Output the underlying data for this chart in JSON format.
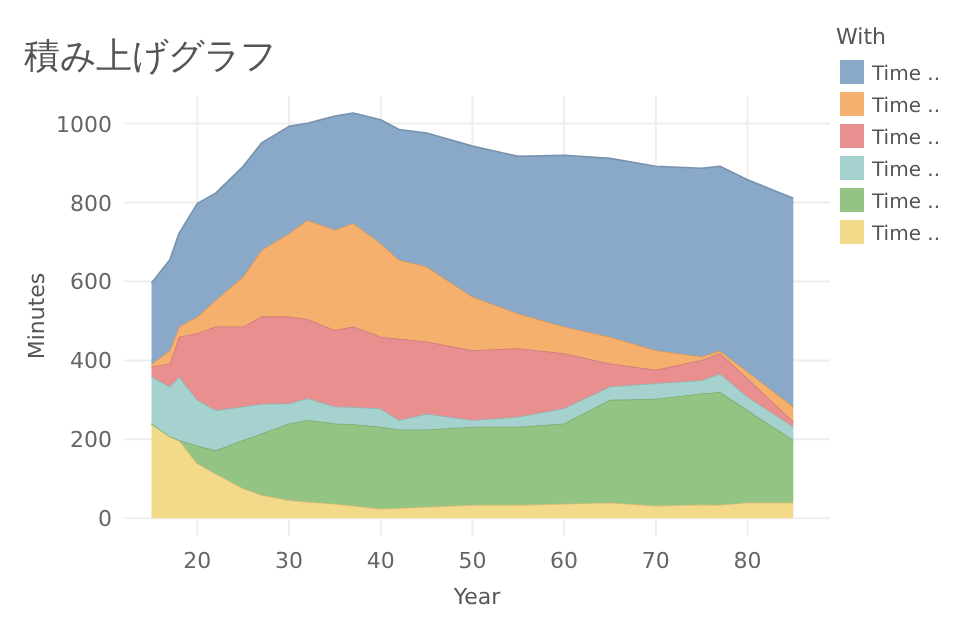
{
  "chart_data": {
    "type": "area",
    "stacked": true,
    "title": "積み上げグラフ",
    "xlabel": "Year",
    "ylabel": "Minutes",
    "legend_title": "With",
    "legend": "top right",
    "grid": true,
    "x": [
      15,
      17,
      18,
      20,
      22,
      25,
      27,
      30,
      32,
      35,
      37,
      40,
      42,
      45,
      50,
      55,
      60,
      65,
      70,
      75,
      77,
      80,
      85
    ],
    "xlim": [
      12,
      89
    ],
    "ylim": [
      -45,
      1070
    ],
    "xticks": [
      20,
      30,
      40,
      50,
      60,
      70,
      80
    ],
    "yticks": [
      0,
      200,
      400,
      600,
      800,
      1000
    ],
    "series": [
      {
        "name": "Time ..",
        "color": "#f3d98a",
        "values": [
          240,
          208,
          198,
          139,
          113,
          76,
          59,
          46,
          42,
          37,
          32,
          24,
          26,
          29,
          34,
          34,
          37,
          40,
          32,
          35,
          34,
          40,
          40
        ]
      },
      {
        "name": "Time ..",
        "color": "#93c483",
        "values": [
          0,
          0,
          0,
          45,
          59,
          122,
          156,
          194,
          207,
          203,
          206,
          208,
          199,
          196,
          198,
          198,
          203,
          260,
          271,
          281,
          286,
          234,
          158
        ]
      },
      {
        "name": "Time ..",
        "color": "#a5d2cf",
        "values": [
          119,
          126,
          161,
          116,
          102,
          85,
          75,
          51,
          55,
          43,
          44,
          46,
          24,
          40,
          17,
          25,
          39,
          34,
          39,
          34,
          47,
          34,
          34
        ]
      },
      {
        "name": "Time ..",
        "color": "#ea8f90",
        "values": [
          25,
          58,
          101,
          169,
          212,
          203,
          221,
          220,
          201,
          194,
          204,
          182,
          206,
          183,
          177,
          174,
          139,
          58,
          34,
          51,
          51,
          47,
          13
        ]
      },
      {
        "name": "Time ..",
        "color": "#f5b06e",
        "values": [
          7,
          34,
          26,
          42,
          67,
          127,
          169,
          211,
          251,
          254,
          262,
          237,
          200,
          190,
          136,
          88,
          68,
          68,
          50,
          9,
          7,
          17,
          38
        ]
      },
      {
        "name": "Time ..",
        "color": "#8aa8c8",
        "values": [
          205,
          229,
          236,
          287,
          271,
          279,
          271,
          271,
          245,
          288,
          279,
          313,
          330,
          338,
          381,
          398,
          434,
          452,
          466,
          477,
          467,
          486,
          528
        ]
      }
    ]
  }
}
